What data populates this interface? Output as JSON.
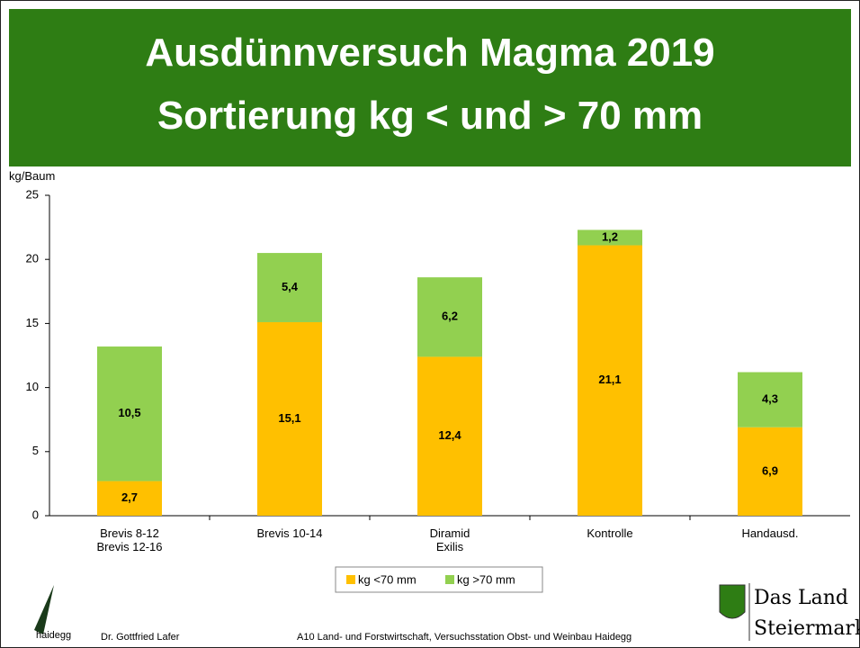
{
  "chart_data": {
    "type": "stacked-bar",
    "title": "Ausdünnversuch Magma 2019",
    "subtitle": "Sortierung kg < und > 70 mm",
    "y_label": "kg/Baum",
    "categories": [
      "Brevis 8-12\nBrevis 12-16",
      "Brevis 10-14",
      "Diramid\nExilis",
      "Kontrolle",
      "Handausd."
    ],
    "series": [
      {
        "name": "kg <70 mm",
        "color": "#ffc000",
        "values": [
          2.7,
          15.1,
          12.4,
          21.1,
          6.9
        ],
        "value_labels": [
          "2,7",
          "15,1",
          "12,4",
          "21,1",
          "6,9"
        ]
      },
      {
        "name": "kg >70 mm",
        "color": "#92d050",
        "values": [
          10.5,
          5.4,
          6.2,
          1.2,
          4.3
        ],
        "value_labels": [
          "10,5",
          "5,4",
          "6,2",
          "1,2",
          "4,3"
        ]
      }
    ],
    "ylim": [
      0,
      25
    ],
    "yticks": [
      0,
      5,
      10,
      15,
      20,
      25
    ],
    "grid": false,
    "legend": "bottom"
  },
  "footer": {
    "logo_text": "haidegg",
    "author": "Dr. Gottfried Lafer",
    "institution": "A10 Land- und Forstwirtschaft, Versuchsstation Obst- und Weinbau Haidegg",
    "brand_line1": "Das Land",
    "brand_line2": "Steiermark"
  }
}
